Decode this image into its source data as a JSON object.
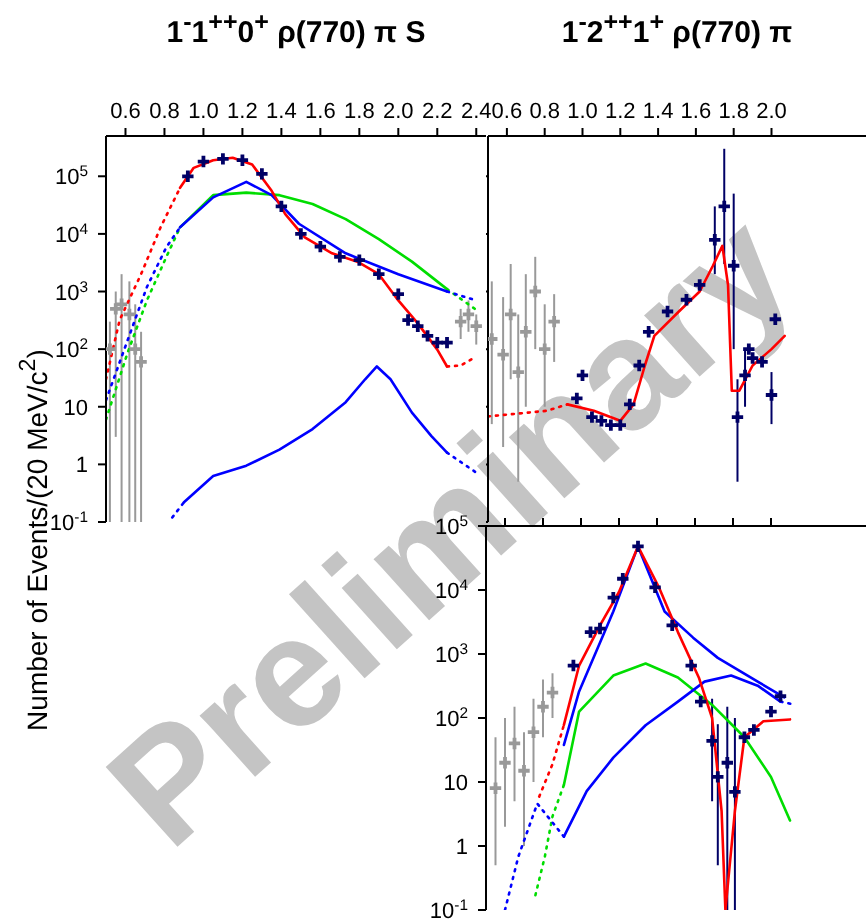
{
  "chart_data": [
    {
      "type": "line",
      "title": "1$^{-}$1$^{++}$0$^{+}$  ρ(770)  π S",
      "ylabel": "Number of Events/(20 MeV/c$^{2}$)",
      "annotations": [
        "Preliminary"
      ],
      "log": "y",
      "xlim": [
        0.5,
        2.45
      ],
      "xticks": [
        0.6,
        0.8,
        {
          "value": 1,
          "label": "1.0"
        },
        1.2,
        1.4,
        1.6,
        1.8,
        {
          "value": 2,
          "label": "2.0"
        },
        2.2,
        2.4
      ],
      "ylim": [
        0.1,
        500000
      ],
      "yticks": [
        {
          "value": 0.1,
          "label": "10$^{-1}$"
        },
        {
          "value": 1,
          "label": "1"
        },
        {
          "value": 10,
          "label": "10"
        },
        {
          "value": 100,
          "label": "10$^{2}$"
        },
        {
          "value": 1000,
          "label": "10$^{3}$"
        },
        {
          "value": 10000,
          "label": "10$^{4}$"
        },
        {
          "value": 100000,
          "label": "10$^{5}$"
        }
      ],
      "series": [
        {
          "type": "scatter",
          "marker": "cross",
          "color": "#999999",
          "x": [
            0.52,
            0.55,
            0.58,
            0.62,
            0.65,
            0.68,
            2.32,
            2.36,
            2.4
          ],
          "values": [
            100,
            500,
            600,
            400,
            100,
            60,
            300,
            400,
            250
          ],
          "errors": [
            [
              0.1,
              300
            ],
            [
              3,
              1000
            ],
            [
              0.1,
              2000
            ],
            [
              0.1,
              1500
            ],
            [
              0.1,
              600
            ],
            [
              0.1,
              200
            ],
            [
              150,
              500
            ],
            [
              200,
              700
            ],
            [
              120,
              400
            ]
          ]
        },
        {
          "type": "scatter",
          "marker": "cross",
          "color": "#000066",
          "x": [
            0.92,
            1.0,
            1.1,
            1.2,
            1.3,
            1.4,
            1.5,
            1.6,
            1.7,
            1.8,
            1.9,
            2.0,
            2.05,
            2.1,
            2.15,
            2.2,
            2.25
          ],
          "values": [
            100000,
            180000,
            200000,
            190000,
            110000,
            30000,
            10000,
            6000,
            4000,
            3500,
            2000,
            900,
            320,
            250,
            170,
            130,
            130
          ]
        },
        {
          "color": "#00dd00",
          "line_style": "dotted",
          "x": [
            0.5,
            0.61,
            0.71,
            0.81,
            0.88
          ],
          "values": [
            6,
            85,
            700,
            4000,
            13000
          ]
        },
        {
          "color": "#00dd00",
          "line_style": "solid",
          "x": [
            0.88,
            1.05,
            1.22,
            1.39,
            1.56,
            1.73,
            1.9,
            2.07,
            2.25
          ],
          "values": [
            13000,
            47000,
            52000,
            47000,
            33000,
            18000,
            8100,
            3300,
            1100
          ]
        },
        {
          "color": "#00dd00",
          "line_style": "dotted",
          "x": [
            2.25,
            2.4
          ],
          "values": [
            1100,
            480
          ]
        },
        {
          "color": "#0000ff",
          "line_style": "dotted",
          "x": [
            0.5,
            0.61,
            0.71,
            0.81,
            0.88
          ],
          "values": [
            13,
            140,
            1200,
            5900,
            13000
          ]
        },
        {
          "color": "#0000ff",
          "line_style": "solid",
          "x": [
            0.88,
            1.05,
            1.22,
            1.35,
            1.49,
            1.73,
            2.0,
            2.25
          ],
          "values": [
            13000,
            43000,
            80000,
            47000,
            15000,
            4600,
            2000,
            1000
          ]
        },
        {
          "color": "#0000ff",
          "line_style": "dotted",
          "x": [
            2.25,
            2.4
          ],
          "values": [
            1000,
            700
          ]
        },
        {
          "color": "#0000ff",
          "line_style": "dotted",
          "x": [
            0.84,
            0.9
          ],
          "values": [
            0.12,
            0.22
          ]
        },
        {
          "color": "#0000ff",
          "line_style": "solid",
          "x": [
            0.9,
            1.05,
            1.22,
            1.39,
            1.56,
            1.73,
            1.83,
            1.89,
            1.96,
            2.07,
            2.17,
            2.25
          ],
          "values": [
            0.22,
            0.63,
            0.95,
            1.8,
            4.1,
            12,
            30,
            50,
            30,
            7.9,
            3.1,
            1.6
          ]
        },
        {
          "color": "#0000ff",
          "line_style": "dotted",
          "x": [
            2.25,
            2.4
          ],
          "values": [
            1.6,
            0.72
          ]
        },
        {
          "color": "#ff0000",
          "line_style": "dotted",
          "x": [
            0.5,
            0.57,
            0.68,
            0.78,
            0.88
          ],
          "values": [
            30,
            320,
            2000,
            13000,
            63000
          ]
        },
        {
          "color": "#ff0000",
          "line_style": "solid",
          "x": [
            0.88,
            0.95,
            1.05,
            1.15,
            1.25,
            1.35,
            1.42,
            1.52,
            1.66,
            1.79,
            1.9,
            2.0,
            2.1,
            2.2,
            2.25
          ],
          "values": [
            63000,
            140000,
            190000,
            210000,
            160000,
            56000,
            22000,
            8700,
            4600,
            3300,
            2000,
            700,
            280,
            98,
            50
          ]
        },
        {
          "color": "#ff0000",
          "line_style": "dotted",
          "x": [
            2.25,
            2.32,
            2.4
          ],
          "values": [
            50,
            52,
            74
          ]
        }
      ]
    },
    {
      "type": "line",
      "title": "1$^{-}$2$^{++}$1$^{+}$  ρ(770)  π",
      "log": "y",
      "tick_labels": "x",
      "xlim": [
        0.5,
        2.5
      ],
      "xticks": [
        0.6,
        0.8,
        {
          "value": 1,
          "label": "1.0"
        },
        1.2,
        1.4,
        1.6,
        1.8,
        {
          "value": 2,
          "label": "2.0"
        }
      ],
      "ylim": [
        0.1,
        500000
      ],
      "yticks": [
        {
          "value": 0.1,
          "label": null
        },
        {
          "value": 1,
          "label": null
        },
        {
          "value": 10,
          "label": null
        },
        {
          "value": 100,
          "label": null
        },
        {
          "value": 1000,
          "label": null
        },
        {
          "value": 10000,
          "label": null
        },
        {
          "value": 100000,
          "label": null
        }
      ],
      "series": [
        {
          "type": "scatter",
          "marker": "cross",
          "color": "#999999",
          "x": [
            0.52,
            0.58,
            0.62,
            0.66,
            0.7,
            0.75,
            0.8,
            0.85
          ],
          "values": [
            150,
            80,
            400,
            40,
            200,
            1000,
            100,
            300
          ],
          "errors": [
            [
              5,
              1500
            ],
            [
              2,
              800
            ],
            [
              30,
              3000
            ],
            [
              0.5,
              400
            ],
            [
              10,
              2000
            ],
            [
              100,
              4000
            ],
            [
              10,
              600
            ],
            [
              60,
              900
            ]
          ]
        },
        {
          "type": "scatter",
          "marker": "cross",
          "color": "#000066",
          "x": [
            0.97,
            1.0,
            1.05,
            1.1,
            1.15,
            1.2,
            1.25,
            1.3,
            1.35,
            1.45,
            1.55,
            1.62,
            1.7,
            1.75,
            1.8,
            1.82,
            1.86,
            1.88,
            1.9,
            1.95,
            2.0,
            2.02
          ],
          "values": [
            14,
            35,
            6.6,
            5.7,
            4.8,
            4.8,
            11,
            52,
            200,
            450,
            720,
            1300,
            7900,
            30000,
            2800,
            6.6,
            35,
            100,
            70,
            60,
            16,
            330
          ],
          "errors": [
            null,
            null,
            null,
            null,
            null,
            null,
            null,
            null,
            null,
            null,
            null,
            null,
            [
              2000,
              30000
            ],
            [
              3000,
              300000
            ],
            [
              100,
              50000
            ],
            [
              0.5,
              30
            ],
            [
              10,
              100
            ],
            null,
            null,
            null,
            [
              5,
              40
            ],
            null
          ]
        },
        {
          "color": "#ff0000",
          "line_style": "dotted",
          "x": [
            0.5,
            0.81,
            0.92
          ],
          "values": [
            6.8,
            8.5,
            11
          ]
        },
        {
          "color": "#ff0000",
          "line_style": "solid",
          "x": [
            0.92,
            1.06,
            1.2,
            1.27,
            1.33,
            1.38,
            1.51,
            1.62,
            1.69,
            1.74,
            1.77,
            1.79,
            1.83,
            1.9,
            2.0,
            2.07
          ],
          "values": [
            11,
            8.5,
            5.7,
            11,
            52,
            170,
            450,
            1000,
            2800,
            6200,
            1300,
            19,
            19,
            52,
            100,
            170
          ]
        }
      ]
    },
    {
      "type": "line",
      "log": "y",
      "tick_labels": "y",
      "xlim": [
        0.5,
        2.5
      ],
      "xticks": [
        {
          "value": 0.6,
          "label": null
        },
        {
          "value": 0.8,
          "label": null
        },
        {
          "value": 1,
          "label": null
        },
        {
          "value": 1.2,
          "label": null
        },
        {
          "value": 1.4,
          "label": null
        },
        {
          "value": 1.6,
          "label": null
        },
        {
          "value": 1.8,
          "label": null
        },
        {
          "value": 2,
          "label": null
        }
      ],
      "ylim": [
        0.1,
        100000
      ],
      "yticks": [
        {
          "value": 0.1,
          "label": "10$^{-1}$"
        },
        {
          "value": 1,
          "label": "1"
        },
        {
          "value": 10,
          "label": "10"
        },
        {
          "value": 100,
          "label": "10$^{2}$"
        },
        {
          "value": 1000,
          "label": "10$^{3}$"
        },
        {
          "value": 10000,
          "label": "10$^{4}$"
        },
        {
          "value": 100000,
          "label": "10$^{5}$"
        }
      ],
      "series": [
        {
          "type": "scatter",
          "marker": "cross",
          "color": "#999999",
          "x": [
            0.55,
            0.6,
            0.65,
            0.7,
            0.75,
            0.8,
            0.85
          ],
          "values": [
            8,
            20,
            40,
            15,
            60,
            150,
            250
          ],
          "errors": [
            [
              0.5,
              50
            ],
            [
              2,
              100
            ],
            [
              5,
              150
            ],
            [
              1,
              60
            ],
            [
              10,
              200
            ],
            [
              50,
              400
            ],
            [
              100,
              500
            ]
          ]
        },
        {
          "type": "scatter",
          "marker": "cross",
          "color": "#000066",
          "x": [
            0.96,
            1.05,
            1.1,
            1.17,
            1.22,
            1.3,
            1.39,
            1.48,
            1.58,
            1.63,
            1.69,
            1.72,
            1.77,
            1.81,
            1.86,
            1.91,
            2.0,
            2.05
          ],
          "values": [
            660,
            2200,
            2500,
            7600,
            15000,
            48000,
            11000,
            2800,
            660,
            180,
            44,
            12,
            20,
            7,
            50,
            65,
            126,
            220
          ],
          "errors": [
            null,
            null,
            null,
            null,
            null,
            null,
            null,
            null,
            null,
            null,
            [
              5,
              200
            ],
            [
              0.5,
              80
            ],
            [
              0.1,
              150
            ],
            [
              0.1,
              100
            ],
            null,
            null,
            null,
            null
          ]
        },
        {
          "color": "#00dd00",
          "line_style": "dotted",
          "x": [
            0.76,
            0.81,
            0.85,
            0.91
          ],
          "values": [
            0.17,
            0.69,
            2.9,
            9
          ]
        },
        {
          "color": "#00dd00",
          "line_style": "solid",
          "x": [
            0.91,
            0.99,
            1.17,
            1.34,
            1.51,
            1.69,
            1.86,
            2.0,
            2.1
          ],
          "values": [
            9,
            126,
            460,
            710,
            430,
            160,
            50,
            12,
            2.5
          ]
        },
        {
          "color": "#0000ff",
          "line_style": "dotted",
          "x": [
            0.6,
            0.67,
            0.77,
            0.91
          ],
          "values": [
            0.1,
            0.68,
            4.6,
            1.4
          ]
        },
        {
          "color": "#0000ff",
          "line_style": "solid",
          "x": [
            0.91,
            1.03,
            1.17,
            1.34,
            1.51,
            1.65,
            1.79,
            1.93,
            2.05
          ],
          "values": [
            1.4,
            7.2,
            24,
            77,
            180,
            370,
            460,
            320,
            180
          ]
        },
        {
          "color": "#0000ff",
          "line_style": "dotted",
          "x": [
            2.05,
            2.13
          ],
          "values": [
            180,
            160
          ]
        },
        {
          "color": "#0000ff",
          "line_style": "solid",
          "x": [
            0.91,
            0.99,
            1.17,
            1.3,
            1.44,
            1.59,
            1.72,
            1.93,
            2.07
          ],
          "values": [
            38,
            260,
            4600,
            48000,
            4600,
            1800,
            870,
            370,
            210
          ]
        },
        {
          "color": "#ff0000",
          "line_style": "dotted",
          "x": [
            0.78,
            0.85,
            0.91
          ],
          "values": [
            5.9,
            19,
            78
          ]
        },
        {
          "color": "#ff0000",
          "line_style": "solid",
          "x": [
            0.91,
            0.99,
            1.1,
            1.2,
            1.3,
            1.41,
            1.51,
            1.62,
            1.69,
            1.74,
            1.76,
            1.81,
            1.86,
            1.96,
            2.1
          ],
          "values": [
            78,
            660,
            2800,
            9300,
            48000,
            11000,
            2200,
            430,
            100,
            3.5,
            0.1,
            3.5,
            50,
            89,
            95
          ]
        }
      ]
    }
  ]
}
